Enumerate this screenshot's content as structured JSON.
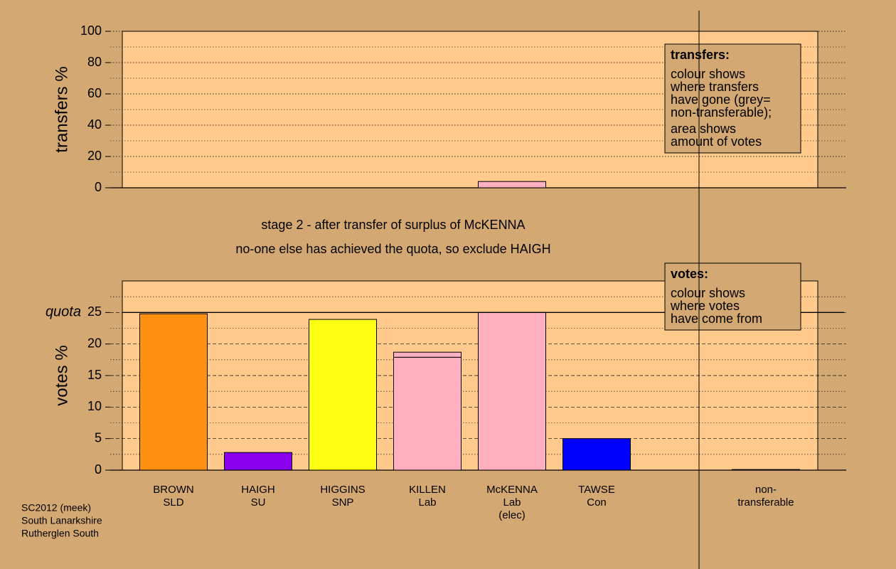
{
  "chart_data": [
    {
      "type": "bar",
      "ylabel": "transfers %",
      "values": [
        null,
        null,
        null,
        null,
        4,
        null,
        null,
        null
      ],
      "color": "#ffb0c0",
      "ylim": [
        0,
        100
      ],
      "yticks": [
        0,
        20,
        40,
        60,
        80,
        100
      ],
      "grid": true,
      "note": {
        "title": "transfers:",
        "paragraphs": [
          [
            "colour shows",
            "where transfers",
            "have gone (grey=",
            "non-transferable);"
          ],
          [
            "area shows",
            "amount of votes"
          ]
        ]
      }
    },
    {
      "type": "stacked-bar",
      "ylabel": "votes %",
      "categories": [
        [
          "BROWN",
          "SLD"
        ],
        [
          "HAIGH",
          "SU"
        ],
        [
          "HIGGINS",
          "SNP"
        ],
        [
          "KILLEN",
          "Lab"
        ],
        [
          "McKENNA",
          "Lab",
          "(elec)"
        ],
        [
          "TAWSE",
          "Con"
        ],
        null,
        [
          "non-",
          "transferable"
        ]
      ],
      "series": [
        {
          "values": [
            24.8,
            2.8,
            23.9,
            17.9,
            25,
            5,
            null,
            0.1
          ],
          "colors": [
            "#ff9010",
            "#8800ee",
            "#ffff14",
            "#ffb0c0",
            "#ffb0c0",
            "#0000ff",
            null,
            "#808080"
          ]
        },
        {
          "values": [
            null,
            null,
            null,
            0.8,
            null,
            null,
            null,
            null
          ],
          "colors": [
            null,
            null,
            null,
            "#ffb0c0",
            null,
            null,
            null,
            null
          ]
        }
      ],
      "ylim": [
        0,
        30
      ],
      "yticks": [
        0,
        5,
        10,
        15,
        20,
        25
      ],
      "grid": true,
      "quota": {
        "value": 25,
        "label": "quota"
      },
      "note": {
        "title": "votes:",
        "paragraphs": [
          [
            "colour shows",
            "where votes",
            "have come from"
          ]
        ]
      }
    }
  ],
  "subtitle": [
    "stage 2 - after transfer of surplus of McKENNA",
    "no-one else has achieved the quota, so exclude HAIGH"
  ],
  "source": [
    "SC2012 (meek)",
    "South Lanarkshire",
    "Rutherglen South"
  ]
}
